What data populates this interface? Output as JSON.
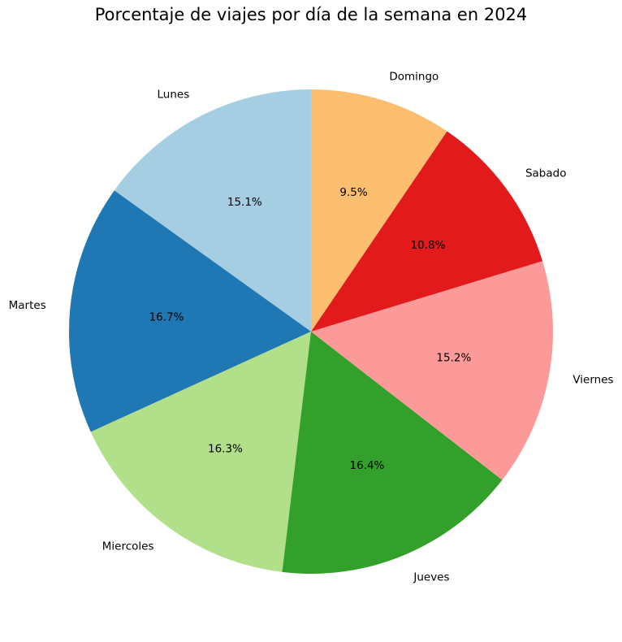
{
  "chart_data": {
    "type": "pie",
    "title": "Porcentaje de viajes por día de la semana en 2024",
    "categories": [
      "Lunes",
      "Martes",
      "Miercoles",
      "Jueves",
      "Viernes",
      "Sabado",
      "Domingo"
    ],
    "values": [
      15.1,
      16.7,
      16.3,
      16.4,
      15.2,
      10.8,
      9.5
    ],
    "value_labels": [
      "15.1%",
      "16.7%",
      "16.3%",
      "16.4%",
      "15.2%",
      "10.8%",
      "9.5%"
    ],
    "colors": [
      "#a6cee3",
      "#1f78b4",
      "#b2df8a",
      "#33a02c",
      "#fb9a99",
      "#e31a1c",
      "#fdbf6f"
    ],
    "start_angle_deg": 90,
    "direction": "counterclockwise",
    "legend": "none"
  }
}
